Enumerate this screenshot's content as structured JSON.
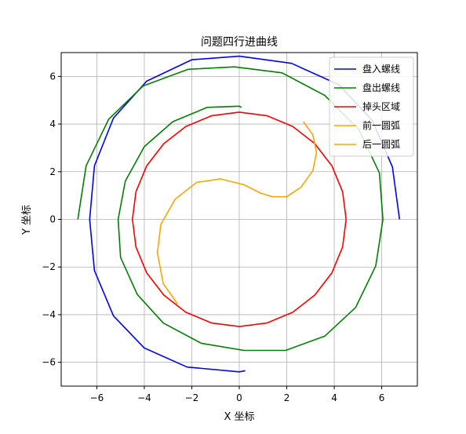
{
  "chart_data": {
    "type": "line",
    "title": "问题四行进曲线",
    "xlabel": "X 坐标",
    "ylabel": "Y 坐标",
    "xlim": [
      -7.5,
      7.5
    ],
    "ylim": [
      -7.0,
      7.0
    ],
    "xticks": [
      -6,
      -4,
      -2,
      0,
      2,
      4,
      6
    ],
    "yticks": [
      -6,
      -4,
      -2,
      0,
      2,
      4,
      6
    ],
    "grid": true,
    "legend_position": "top-right",
    "series": [
      {
        "name": "盘入螺线",
        "color": "#0000ff",
        "points": [
          [
            6.75,
            0
          ],
          [
            6.45,
            2.2
          ],
          [
            5.6,
            4.15
          ],
          [
            4.2,
            5.65
          ],
          [
            2.2,
            6.55
          ],
          [
            0,
            6.85
          ],
          [
            -2.0,
            6.7
          ],
          [
            -3.9,
            5.8
          ],
          [
            -5.3,
            4.25
          ],
          [
            -6.1,
            2.25
          ],
          [
            -6.3,
            0
          ],
          [
            -6.1,
            -2.15
          ],
          [
            -5.3,
            -4.05
          ],
          [
            -4.0,
            -5.4
          ],
          [
            -2.2,
            -6.2
          ],
          [
            0,
            -6.4
          ],
          [
            0.25,
            -6.35
          ]
        ]
      },
      {
        "name": "盘出螺线",
        "color": "#008000",
        "points": [
          [
            -6.8,
            0
          ],
          [
            -6.45,
            2.25
          ],
          [
            -5.5,
            4.2
          ],
          [
            -4.05,
            5.6
          ],
          [
            -2.15,
            6.3
          ],
          [
            -0.2,
            6.4
          ],
          [
            1.8,
            6.15
          ],
          [
            3.6,
            5.2
          ],
          [
            5.05,
            3.75
          ],
          [
            5.9,
            1.95
          ],
          [
            6.05,
            0
          ],
          [
            5.75,
            -1.95
          ],
          [
            4.9,
            -3.7
          ],
          [
            3.6,
            -4.9
          ],
          [
            1.95,
            -5.5
          ],
          [
            0.2,
            -5.5
          ],
          [
            -1.6,
            -5.2
          ],
          [
            -3.2,
            -4.35
          ],
          [
            -4.3,
            -3.15
          ],
          [
            -5.0,
            -1.6
          ],
          [
            -5.1,
            0
          ],
          [
            -4.8,
            1.6
          ],
          [
            -4.0,
            3.05
          ],
          [
            -2.8,
            4.1
          ],
          [
            -1.35,
            4.7
          ],
          [
            0,
            4.75
          ],
          [
            0.1,
            4.7
          ]
        ]
      },
      {
        "name": "掉头区域",
        "color": "#ff0000",
        "points": [
          [
            4.5,
            0
          ],
          [
            4.35,
            1.16
          ],
          [
            3.9,
            2.25
          ],
          [
            3.18,
            3.18
          ],
          [
            2.25,
            3.9
          ],
          [
            1.16,
            4.35
          ],
          [
            0,
            4.5
          ],
          [
            -1.16,
            4.35
          ],
          [
            -2.25,
            3.9
          ],
          [
            -3.18,
            3.18
          ],
          [
            -3.9,
            2.25
          ],
          [
            -4.35,
            1.16
          ],
          [
            -4.5,
            0
          ],
          [
            -4.35,
            -1.16
          ],
          [
            -3.9,
            -2.25
          ],
          [
            -3.18,
            -3.18
          ],
          [
            -2.25,
            -3.9
          ],
          [
            -1.16,
            -4.35
          ],
          [
            0,
            -4.5
          ],
          [
            1.16,
            -4.35
          ],
          [
            2.25,
            -3.9
          ],
          [
            3.18,
            -3.18
          ],
          [
            3.9,
            -2.25
          ],
          [
            4.35,
            -1.16
          ],
          [
            4.5,
            0
          ]
        ]
      },
      {
        "name": "前一圆弧",
        "color": "#ffa500",
        "points": [
          [
            -2.6,
            -3.55
          ],
          [
            -3.2,
            -2.7
          ],
          [
            -3.45,
            -1.4
          ],
          [
            -3.3,
            -0.2
          ],
          [
            -2.7,
            0.85
          ],
          [
            -1.8,
            1.55
          ],
          [
            -0.8,
            1.7
          ],
          [
            0.2,
            1.45
          ],
          [
            0.9,
            1.1
          ],
          [
            1.4,
            0.95
          ]
        ]
      },
      {
        "name": "后一圆弧",
        "color": "#ffa500",
        "points": [
          [
            1.4,
            0.95
          ],
          [
            2.0,
            0.95
          ],
          [
            2.6,
            1.35
          ],
          [
            3.1,
            2.05
          ],
          [
            3.25,
            2.8
          ],
          [
            3.1,
            3.55
          ],
          [
            2.7,
            4.1
          ]
        ]
      }
    ]
  }
}
